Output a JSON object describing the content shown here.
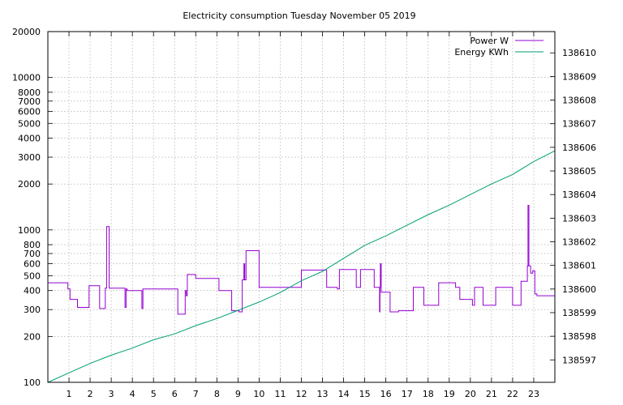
{
  "chart_data": {
    "type": "line",
    "title": "Electricity consumption Tuesday November 05 2019",
    "xlabel": "",
    "ylabel": "",
    "xlim": [
      0,
      24
    ],
    "x_ticks": [
      1,
      2,
      3,
      4,
      5,
      6,
      7,
      8,
      9,
      10,
      11,
      12,
      13,
      14,
      15,
      16,
      17,
      18,
      19,
      20,
      21,
      22,
      23
    ],
    "ylim_left": [
      100,
      20000
    ],
    "y_scale_left": "log",
    "y_ticks_left": [
      {
        "v": 100,
        "label": "100"
      },
      {
        "v": 200,
        "label": "200"
      },
      {
        "v": 300,
        "label": "300"
      },
      {
        "v": 400,
        "label": "400"
      },
      {
        "v": 500,
        "label": "500"
      },
      {
        "v": 600,
        "label": "600"
      },
      {
        "v": 700,
        "label": "700"
      },
      {
        "v": 800,
        "label": "800"
      },
      {
        "v": 1000,
        "label": "1000"
      },
      {
        "v": 2000,
        "label": "2000"
      },
      {
        "v": 3000,
        "label": "3000"
      },
      {
        "v": 4000,
        "label": "4000"
      },
      {
        "v": 5000,
        "label": "5000"
      },
      {
        "v": 6000,
        "label": "6000"
      },
      {
        "v": 7000,
        "label": "7000"
      },
      {
        "v": 8000,
        "label": "8000"
      },
      {
        "v": 10000,
        "label": "10000"
      },
      {
        "v": 20000,
        "label": "20000"
      }
    ],
    "ylim_right": [
      138596.05,
      138610.9
    ],
    "y_ticks_right": [
      138597,
      138598,
      138599,
      138600,
      138601,
      138602,
      138603,
      138604,
      138605,
      138606,
      138607,
      138608,
      138609,
      138610
    ],
    "grid": true,
    "legend_position": "top-right",
    "series": [
      {
        "name": "Power W",
        "color": "#9400d3",
        "axis": "left",
        "step": true,
        "x": [
          0,
          0.8,
          0.95,
          1.05,
          1.4,
          1.95,
          2.05,
          2.45,
          2.7,
          2.72,
          2.74,
          2.78,
          2.9,
          3.65,
          3.7,
          3.75,
          4.0,
          4.4,
          4.45,
          4.5,
          5.0,
          6.15,
          6.5,
          6.55,
          6.6,
          7.0,
          7.05,
          8.1,
          8.7,
          9.05,
          9.2,
          9.28,
          9.32,
          9.38,
          10.0,
          10.9,
          11.8,
          12.0,
          13.2,
          13.7,
          13.8,
          14.6,
          14.8,
          15.45,
          15.7,
          15.72,
          15.74,
          15.78,
          16.0,
          16.2,
          16.35,
          16.6,
          17.3,
          17.7,
          17.8,
          18.2,
          18.5,
          19.3,
          19.5,
          19.8,
          20.1,
          20.2,
          20.35,
          20.6,
          21.2,
          22.0,
          22.1,
          22.4,
          22.65,
          22.7,
          22.73,
          22.77,
          22.85,
          22.95,
          23.05,
          23.15,
          24.0
        ],
        "y": [
          450,
          450,
          410,
          350,
          310,
          430,
          430,
          305,
          305,
          415,
          415,
          1050,
          415,
          310,
          410,
          400,
          400,
          400,
          305,
          410,
          410,
          280,
          400,
          370,
          510,
          480,
          480,
          400,
          295,
          290,
          470,
          600,
          470,
          730,
          420,
          420,
          420,
          545,
          420,
          410,
          550,
          420,
          550,
          420,
          290,
          420,
          600,
          390,
          390,
          290,
          290,
          295,
          420,
          420,
          320,
          320,
          450,
          420,
          350,
          350,
          320,
          420,
          420,
          320,
          420,
          320,
          320,
          460,
          460,
          580,
          1450,
          580,
          520,
          540,
          380,
          370,
          370
        ]
      },
      {
        "name": "Energy KWh",
        "color": "#009e73",
        "axis": "right",
        "step": false,
        "x": [
          0,
          1,
          2,
          3,
          4,
          5,
          6,
          7,
          8,
          9,
          10,
          11,
          12,
          13,
          14,
          15,
          16,
          17,
          18,
          19,
          20,
          21,
          22,
          23,
          24
        ],
        "y": [
          138596.05,
          138596.45,
          138596.85,
          138597.2,
          138597.5,
          138597.85,
          138598.1,
          138598.45,
          138598.75,
          138599.1,
          138599.45,
          138599.85,
          138600.35,
          138600.75,
          138601.3,
          138601.85,
          138602.25,
          138602.7,
          138603.15,
          138603.55,
          138604.0,
          138604.45,
          138604.85,
          138605.4,
          138605.85
        ]
      }
    ]
  }
}
